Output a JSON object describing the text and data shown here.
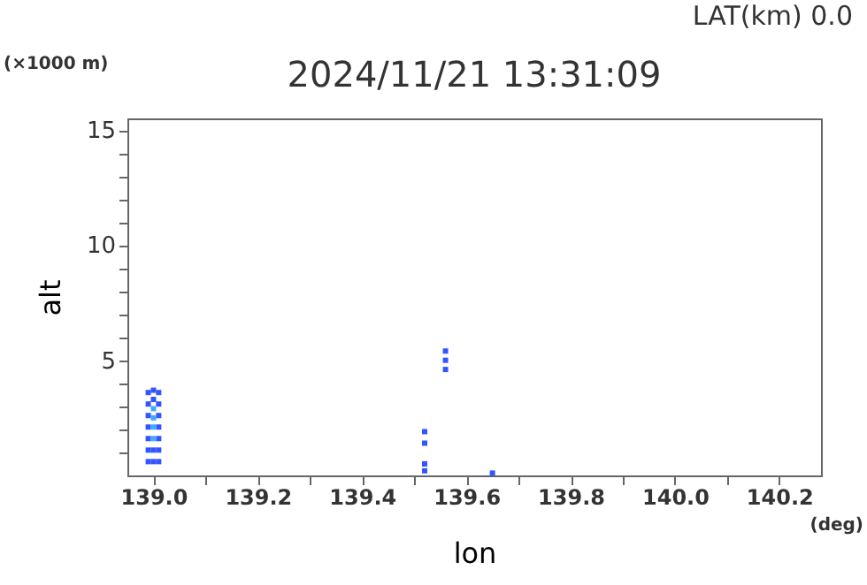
{
  "chart_data": {
    "type": "scatter",
    "title": "2024/11/21 13:31:09",
    "subtitle": "LAT(km) 0.0",
    "xlabel": "lon",
    "ylabel": "alt",
    "annotations": [
      "(×1000 m)",
      "(deg)"
    ],
    "marker": "square",
    "xlim": [
      138.95,
      140.28
    ],
    "ylim": [
      0,
      15.5
    ],
    "xticks": [
      {
        "value": 139,
        "label": "139.0"
      },
      {
        "value": 139.1,
        "label": null
      },
      {
        "value": 139.2,
        "label": "139.2"
      },
      {
        "value": 139.3,
        "label": null
      },
      {
        "value": 139.4,
        "label": "139.4"
      },
      {
        "value": 139.5,
        "label": null
      },
      {
        "value": 139.6,
        "label": "139.6"
      },
      {
        "value": 139.7,
        "label": null
      },
      {
        "value": 139.8,
        "label": "139.8"
      },
      {
        "value": 139.9,
        "label": null
      },
      {
        "value": 140,
        "label": "140.0"
      },
      {
        "value": 140.1,
        "label": null
      },
      {
        "value": 140.2,
        "label": "140.2"
      }
    ],
    "yticks": [
      {
        "value": 1,
        "label": null
      },
      {
        "value": 2,
        "label": null
      },
      {
        "value": 3,
        "label": null
      },
      {
        "value": 4,
        "label": null
      },
      5,
      {
        "value": 6,
        "label": null
      },
      {
        "value": 7,
        "label": null
      },
      {
        "value": 8,
        "label": null
      },
      {
        "value": 9,
        "label": null
      },
      10,
      {
        "value": 11,
        "label": null
      },
      {
        "value": 12,
        "label": null
      },
      {
        "value": 13,
        "label": null
      },
      {
        "value": 14,
        "label": null
      },
      15
    ],
    "series": [
      {
        "color": "#3355ff",
        "x": [
          138.99,
          138.99,
          138.99,
          138.99,
          138.99,
          138.99,
          138.99,
          139.0,
          139.0,
          139.0,
          139.0,
          139.01,
          139.01,
          139.01,
          139.01,
          139.01,
          139.01,
          139.01,
          139.52,
          139.52,
          139.52,
          139.52,
          139.56,
          139.56,
          139.56,
          139.65
        ],
        "values": [
          0.6,
          1.1,
          1.6,
          2.1,
          2.6,
          3.1,
          3.6,
          0.6,
          1.1,
          3.3,
          3.7,
          0.6,
          1.1,
          1.6,
          2.1,
          2.6,
          3.1,
          3.6,
          0.2,
          0.5,
          1.4,
          1.9,
          4.6,
          5.0,
          5.4,
          0.1
        ]
      },
      {
        "color": "#44aaff",
        "x": [
          139.0,
          139.0,
          139.0,
          139.0
        ],
        "values": [
          1.6,
          2.1,
          2.5,
          2.9
        ]
      }
    ]
  }
}
